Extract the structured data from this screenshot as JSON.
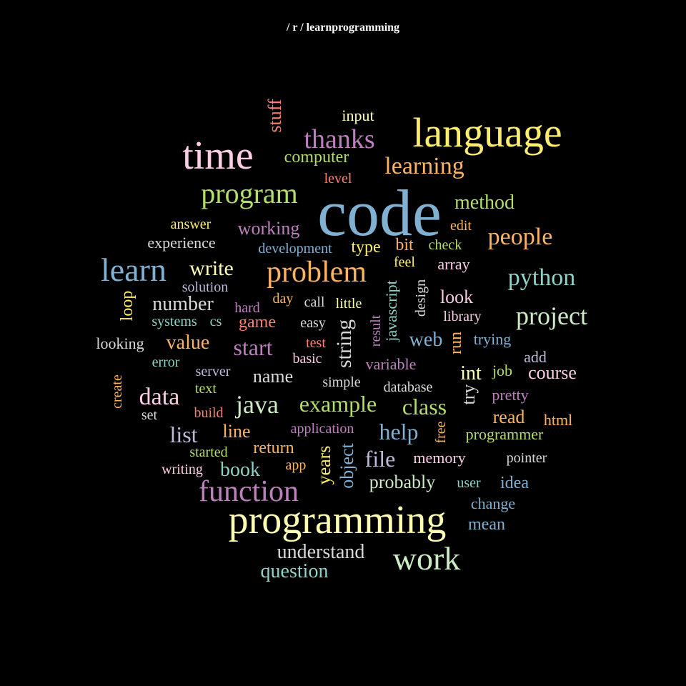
{
  "title": "/ r / learnprogramming",
  "palette": {
    "blue": "#80b1d3",
    "yellow": "#ffed6f",
    "yellow_pale": "#ffffb3",
    "pink": "#fccde5",
    "purple": "#bc80bd",
    "green": "#b3de69",
    "orange": "#fdb462",
    "salmon": "#fb8072",
    "mint": "#8dd3c7",
    "lavender": "#bebada",
    "grey": "#d9d9d9",
    "mint_pale": "#ccebc5"
  },
  "words": [
    {
      "text": "code",
      "color": "blue"
    },
    {
      "text": "language",
      "color": "yellow"
    },
    {
      "text": "programming",
      "color": "yellow_pale"
    },
    {
      "text": "time",
      "color": "pink"
    },
    {
      "text": "work",
      "color": "mint_pale"
    },
    {
      "text": "learn",
      "color": "blue"
    },
    {
      "text": "problem",
      "color": "orange"
    },
    {
      "text": "function",
      "color": "purple"
    },
    {
      "text": "program",
      "color": "green"
    },
    {
      "text": "thanks",
      "color": "purple"
    },
    {
      "text": "project",
      "color": "mint_pale"
    },
    {
      "text": "python",
      "color": "mint"
    },
    {
      "text": "people",
      "color": "orange"
    },
    {
      "text": "learning",
      "color": "orange"
    },
    {
      "text": "java",
      "color": "mint_pale"
    },
    {
      "text": "data",
      "color": "pink"
    },
    {
      "text": "example",
      "color": "green"
    },
    {
      "text": "class",
      "color": "green"
    },
    {
      "text": "start",
      "color": "purple"
    },
    {
      "text": "help",
      "color": "blue"
    },
    {
      "text": "write",
      "color": "yellow_pale"
    },
    {
      "text": "list",
      "color": "lavender"
    },
    {
      "text": "file",
      "color": "lavender"
    },
    {
      "text": "number",
      "color": "grey"
    },
    {
      "text": "method",
      "color": "green"
    },
    {
      "text": "understand",
      "color": "grey"
    },
    {
      "text": "question",
      "color": "mint"
    },
    {
      "text": "value",
      "color": "orange"
    },
    {
      "text": "working",
      "color": "purple"
    },
    {
      "text": "probably",
      "color": "mint_pale"
    },
    {
      "text": "course",
      "color": "pink"
    },
    {
      "text": "look",
      "color": "pink"
    },
    {
      "text": "read",
      "color": "orange"
    },
    {
      "text": "web",
      "color": "blue"
    },
    {
      "text": "book",
      "color": "mint"
    },
    {
      "text": "int",
      "color": "yellow_pale"
    },
    {
      "text": "name",
      "color": "grey"
    },
    {
      "text": "line",
      "color": "orange"
    },
    {
      "text": "return",
      "color": "orange"
    },
    {
      "text": "computer",
      "color": "green"
    },
    {
      "text": "input",
      "color": "yellow_pale"
    },
    {
      "text": "game",
      "color": "salmon"
    },
    {
      "text": "array",
      "color": "pink"
    },
    {
      "text": "type",
      "color": "yellow"
    },
    {
      "text": "bit",
      "color": "orange"
    },
    {
      "text": "experience",
      "color": "grey"
    },
    {
      "text": "development",
      "color": "blue"
    },
    {
      "text": "answer",
      "color": "yellow"
    },
    {
      "text": "solution",
      "color": "lavender"
    },
    {
      "text": "systems",
      "color": "mint"
    },
    {
      "text": "cs",
      "color": "mint"
    },
    {
      "text": "day",
      "color": "orange"
    },
    {
      "text": "call",
      "color": "grey"
    },
    {
      "text": "little",
      "color": "yellow_pale"
    },
    {
      "text": "hard",
      "color": "purple"
    },
    {
      "text": "easy",
      "color": "grey"
    },
    {
      "text": "feel",
      "color": "yellow"
    },
    {
      "text": "check",
      "color": "green"
    },
    {
      "text": "edit",
      "color": "orange"
    },
    {
      "text": "library",
      "color": "pink"
    },
    {
      "text": "trying",
      "color": "blue"
    },
    {
      "text": "job",
      "color": "green"
    },
    {
      "text": "add",
      "color": "lavender"
    },
    {
      "text": "pretty",
      "color": "purple"
    },
    {
      "text": "html",
      "color": "orange"
    },
    {
      "text": "programmer",
      "color": "green"
    },
    {
      "text": "memory",
      "color": "pink"
    },
    {
      "text": "pointer",
      "color": "grey"
    },
    {
      "text": "user",
      "color": "mint"
    },
    {
      "text": "idea",
      "color": "blue"
    },
    {
      "text": "change",
      "color": "blue"
    },
    {
      "text": "mean",
      "color": "blue"
    },
    {
      "text": "looking",
      "color": "grey"
    },
    {
      "text": "error",
      "color": "mint"
    },
    {
      "text": "server",
      "color": "lavender"
    },
    {
      "text": "text",
      "color": "green"
    },
    {
      "text": "set",
      "color": "grey"
    },
    {
      "text": "build",
      "color": "salmon"
    },
    {
      "text": "started",
      "color": "green"
    },
    {
      "text": "writing",
      "color": "pink"
    },
    {
      "text": "app",
      "color": "orange"
    },
    {
      "text": "test",
      "color": "salmon"
    },
    {
      "text": "basic",
      "color": "pink"
    },
    {
      "text": "simple",
      "color": "grey"
    },
    {
      "text": "variable",
      "color": "purple"
    },
    {
      "text": "database",
      "color": "grey"
    },
    {
      "text": "application",
      "color": "purple"
    },
    {
      "text": "level",
      "color": "salmon"
    },
    {
      "text": "stuff",
      "color": "salmon"
    },
    {
      "text": "loop",
      "color": "yellow"
    },
    {
      "text": "create",
      "color": "orange"
    },
    {
      "text": "string",
      "color": "grey"
    },
    {
      "text": "result",
      "color": "purple"
    },
    {
      "text": "javascript",
      "color": "mint"
    },
    {
      "text": "design",
      "color": "grey"
    },
    {
      "text": "run",
      "color": "orange"
    },
    {
      "text": "try",
      "color": "grey"
    },
    {
      "text": "free",
      "color": "orange"
    },
    {
      "text": "years",
      "color": "yellow"
    },
    {
      "text": "object",
      "color": "blue"
    }
  ]
}
